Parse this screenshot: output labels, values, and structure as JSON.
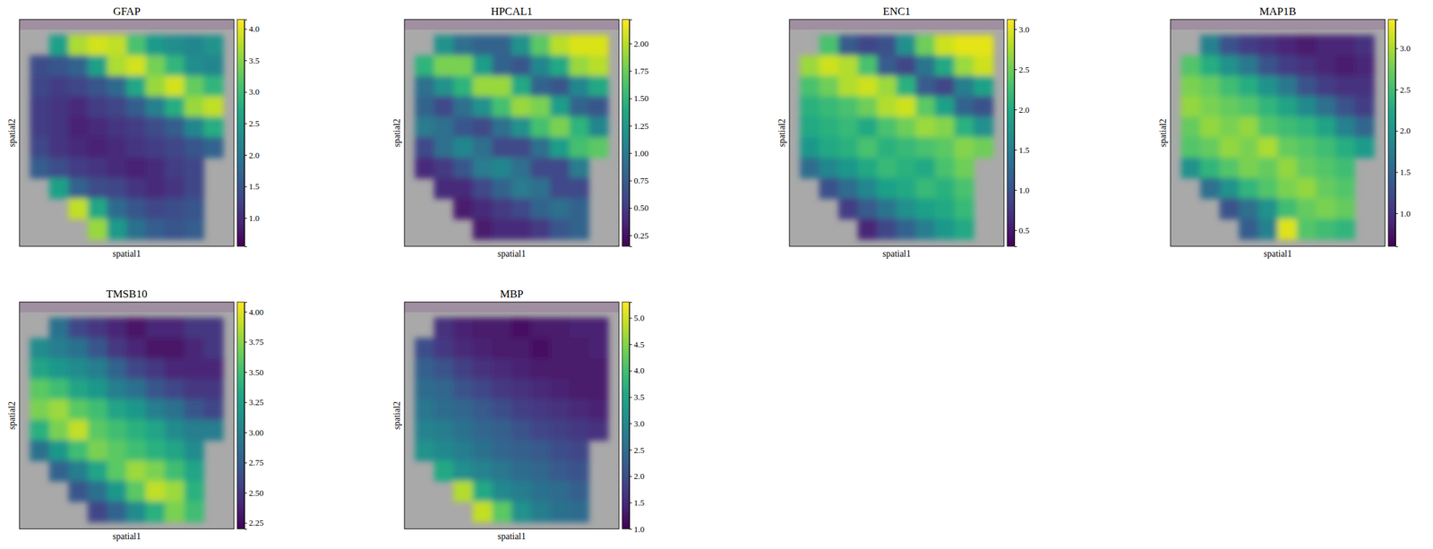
{
  "chart_data": [
    {
      "type": "heatmap",
      "title": "GFAP",
      "x_label": "spatial1",
      "y_label": "spatial2",
      "tick_labels": false,
      "cells": [
        [
          null,
          2.6,
          3.7,
          3.9,
          3.8,
          3.1,
          2.5,
          2.3,
          2.2,
          2.4
        ],
        [
          1.4,
          1.5,
          1.7,
          2.6,
          3.7,
          3.9,
          3.4,
          2.9,
          2.3,
          2.2
        ],
        [
          1.3,
          1.2,
          1.3,
          1.5,
          1.8,
          2.7,
          3.6,
          3.9,
          3.3,
          2.9
        ],
        [
          1.2,
          1.1,
          1.0,
          1.2,
          1.3,
          1.6,
          2.1,
          2.8,
          3.6,
          3.8
        ],
        [
          1.2,
          1.1,
          0.9,
          1.0,
          1.1,
          1.2,
          1.4,
          1.6,
          2.2,
          2.8
        ],
        [
          1.3,
          1.1,
          1.0,
          0.9,
          1.0,
          1.1,
          1.2,
          1.3,
          1.5,
          1.7
        ],
        [
          1.6,
          1.4,
          1.2,
          1.1,
          1.0,
          0.9,
          1.0,
          1.2,
          1.3,
          null
        ],
        [
          null,
          2.6,
          1.7,
          1.4,
          1.3,
          1.1,
          1.0,
          1.1,
          1.3,
          null
        ],
        [
          null,
          null,
          3.8,
          2.7,
          1.8,
          1.5,
          1.3,
          1.4,
          1.5,
          null
        ],
        [
          null,
          null,
          null,
          3.6,
          2.5,
          1.9,
          1.6,
          1.5,
          1.6,
          null
        ]
      ],
      "colorbar": {
        "lim": [
          0.55,
          4.15
        ],
        "ticks": [
          {
            "value": 1,
            "label": "1.0"
          },
          1.5,
          {
            "value": 2,
            "label": "2.0"
          },
          2.5,
          {
            "value": 3,
            "label": "3.0"
          },
          3.5,
          {
            "value": 4,
            "label": "4.0"
          }
        ]
      }
    },
    {
      "type": "heatmap",
      "title": "HPCAL1",
      "x_label": "spatial1",
      "y_label": "spatial2",
      "tick_labels": false,
      "cells": [
        [
          null,
          1.2,
          0.9,
          0.8,
          0.8,
          1.2,
          1.7,
          2.0,
          2.1,
          2.1
        ],
        [
          1.5,
          1.8,
          1.8,
          1.3,
          0.8,
          0.7,
          1.1,
          1.4,
          1.9,
          2.0
        ],
        [
          0.9,
          1.2,
          1.5,
          1.9,
          1.9,
          1.4,
          0.8,
          0.7,
          1.1,
          1.4
        ],
        [
          0.8,
          0.6,
          0.9,
          1.2,
          1.6,
          1.9,
          1.8,
          1.3,
          0.8,
          0.7
        ],
        [
          1.0,
          0.9,
          0.7,
          0.6,
          0.9,
          1.2,
          1.6,
          1.8,
          1.5,
          1.1
        ],
        [
          0.6,
          0.9,
          1.1,
          0.9,
          0.6,
          0.6,
          0.9,
          1.3,
          1.6,
          1.7
        ],
        [
          0.4,
          0.5,
          0.7,
          1.0,
          1.1,
          0.9,
          0.6,
          0.6,
          1.0,
          null
        ],
        [
          null,
          0.4,
          0.4,
          0.6,
          0.8,
          1.0,
          0.9,
          0.6,
          0.6,
          null
        ],
        [
          null,
          null,
          0.3,
          0.4,
          0.5,
          0.6,
          0.8,
          0.9,
          0.8,
          null
        ],
        [
          null,
          null,
          null,
          0.3,
          0.4,
          0.4,
          0.5,
          0.7,
          0.8,
          null
        ]
      ],
      "colorbar": {
        "lim": [
          0.15,
          2.22
        ],
        "ticks": [
          0.25,
          {
            "value": 0.5,
            "label": "0.50"
          },
          0.75,
          {
            "value": 1,
            "label": "1.00"
          },
          1.25,
          {
            "value": 1.5,
            "label": "1.50"
          },
          1.75,
          {
            "value": 2,
            "label": "2.00"
          }
        ]
      }
    },
    {
      "type": "heatmap",
      "title": "ENC1",
      "x_label": "spatial1",
      "y_label": "spatial2",
      "tick_labels": false,
      "cells": [
        [
          null,
          2.3,
          1.1,
          0.9,
          1.0,
          1.7,
          2.5,
          2.9,
          3.0,
          3.0
        ],
        [
          2.7,
          2.9,
          2.8,
          2.3,
          1.1,
          0.9,
          1.4,
          2.0,
          2.7,
          2.9
        ],
        [
          2.3,
          2.5,
          2.8,
          2.9,
          2.7,
          2.1,
          1.1,
          0.9,
          1.5,
          1.9
        ],
        [
          2.1,
          2.2,
          2.3,
          2.5,
          2.8,
          2.9,
          2.4,
          1.9,
          1.2,
          1.0
        ],
        [
          2.0,
          2.1,
          2.2,
          2.0,
          2.3,
          2.5,
          2.7,
          2.6,
          2.1,
          1.7
        ],
        [
          1.8,
          2.0,
          2.1,
          2.3,
          2.1,
          2.2,
          2.3,
          2.4,
          2.6,
          2.5
        ],
        [
          1.3,
          1.6,
          1.8,
          2.0,
          2.2,
          2.1,
          2.0,
          2.3,
          2.5,
          null
        ],
        [
          null,
          1.0,
          1.3,
          1.6,
          1.9,
          2.0,
          2.2,
          2.1,
          2.3,
          null
        ],
        [
          null,
          null,
          0.8,
          1.1,
          1.4,
          1.7,
          1.9,
          2.0,
          2.2,
          null
        ],
        [
          null,
          null,
          null,
          0.6,
          0.9,
          1.2,
          1.5,
          1.8,
          2.0,
          null
        ]
      ],
      "colorbar": {
        "lim": [
          0.3,
          3.12
        ],
        "ticks": [
          0.5,
          {
            "value": 1,
            "label": "1.0"
          },
          1.5,
          {
            "value": 2,
            "label": "2.0"
          },
          2.5,
          {
            "value": 3,
            "label": "3.0"
          }
        ]
      }
    },
    {
      "type": "heatmap",
      "title": "MAP1B",
      "x_label": "spatial1",
      "y_label": "spatial2",
      "tick_labels": false,
      "cells": [
        [
          null,
          1.8,
          1.3,
          1.1,
          1.0,
          0.9,
          0.8,
          0.9,
          0.9,
          1.0
        ],
        [
          2.6,
          2.3,
          2.0,
          1.7,
          1.3,
          1.1,
          1.0,
          0.9,
          0.8,
          0.9
        ],
        [
          2.8,
          2.7,
          2.5,
          2.3,
          2.0,
          1.7,
          1.3,
          1.1,
          1.0,
          1.0
        ],
        [
          2.9,
          2.8,
          2.7,
          2.6,
          2.4,
          2.2,
          1.9,
          1.6,
          1.3,
          1.1
        ],
        [
          2.7,
          2.9,
          2.8,
          2.9,
          2.6,
          2.5,
          2.4,
          2.2,
          1.8,
          1.5
        ],
        [
          2.6,
          2.7,
          2.9,
          2.8,
          3.0,
          2.7,
          2.6,
          2.5,
          2.3,
          2.1
        ],
        [
          2.0,
          2.4,
          2.6,
          2.8,
          2.7,
          2.9,
          2.7,
          2.6,
          2.5,
          null
        ],
        [
          null,
          1.6,
          2.0,
          2.4,
          2.6,
          2.8,
          2.9,
          2.7,
          2.6,
          null
        ],
        [
          null,
          null,
          1.3,
          1.6,
          2.0,
          2.5,
          2.7,
          2.8,
          2.7,
          null
        ],
        [
          null,
          null,
          null,
          1.4,
          1.8,
          3.2,
          2.6,
          2.5,
          2.4,
          null
        ]
      ],
      "colorbar": {
        "lim": [
          0.6,
          3.35
        ],
        "ticks": [
          {
            "value": 1,
            "label": "1.0"
          },
          1.5,
          {
            "value": 2,
            "label": "2.0"
          },
          2.5,
          {
            "value": 3,
            "label": "3.0"
          }
        ]
      }
    },
    {
      "type": "heatmap",
      "title": "TMSB10",
      "x_label": "spatial1",
      "y_label": "spatial2",
      "tick_labels": false,
      "cells": [
        [
          null,
          2.9,
          2.6,
          2.5,
          2.4,
          2.3,
          2.4,
          2.4,
          2.5,
          2.5
        ],
        [
          3.1,
          3.0,
          2.9,
          2.7,
          2.5,
          2.4,
          2.3,
          2.3,
          2.4,
          2.5
        ],
        [
          3.3,
          3.2,
          3.1,
          3.0,
          2.8,
          2.6,
          2.5,
          2.4,
          2.4,
          2.4
        ],
        [
          3.6,
          3.5,
          3.3,
          3.2,
          3.0,
          2.9,
          2.7,
          2.6,
          2.5,
          2.5
        ],
        [
          3.7,
          3.8,
          3.6,
          3.5,
          3.3,
          3.2,
          3.0,
          2.9,
          2.7,
          2.6
        ],
        [
          3.4,
          3.7,
          3.9,
          3.6,
          3.5,
          3.4,
          3.3,
          3.1,
          3.0,
          3.0
        ],
        [
          2.9,
          3.2,
          3.5,
          3.7,
          3.6,
          3.5,
          3.4,
          3.3,
          3.1,
          null
        ],
        [
          null,
          2.8,
          3.0,
          3.3,
          3.6,
          3.8,
          3.7,
          3.5,
          3.3,
          null
        ],
        [
          null,
          null,
          2.7,
          2.9,
          3.2,
          3.6,
          3.9,
          3.8,
          3.4,
          null
        ],
        [
          null,
          null,
          null,
          2.6,
          2.8,
          3.1,
          3.4,
          3.7,
          3.5,
          null
        ]
      ],
      "colorbar": {
        "lim": [
          2.2,
          4.08
        ],
        "ticks": [
          2.25,
          {
            "value": 2.5,
            "label": "2.50"
          },
          2.75,
          {
            "value": 3,
            "label": "3.00"
          },
          3.25,
          {
            "value": 3.5,
            "label": "3.50"
          },
          3.75,
          {
            "value": 4,
            "label": "4.00"
          }
        ]
      }
    },
    {
      "type": "heatmap",
      "title": "MBP",
      "x_label": "spatial1",
      "y_label": "spatial2",
      "tick_labels": false,
      "cells": [
        [
          null,
          1.6,
          1.4,
          1.3,
          1.3,
          1.2,
          1.3,
          1.3,
          1.4,
          1.4
        ],
        [
          2.0,
          1.7,
          1.5,
          1.4,
          1.3,
          1.3,
          1.2,
          1.3,
          1.3,
          1.4
        ],
        [
          2.3,
          2.1,
          1.8,
          1.6,
          1.5,
          1.4,
          1.3,
          1.3,
          1.3,
          1.3
        ],
        [
          2.5,
          2.4,
          2.1,
          1.9,
          1.7,
          1.6,
          1.5,
          1.4,
          1.3,
          1.3
        ],
        [
          2.7,
          2.5,
          2.4,
          2.2,
          2.0,
          1.8,
          1.7,
          1.6,
          1.5,
          1.4
        ],
        [
          2.9,
          2.8,
          2.6,
          2.4,
          2.3,
          2.1,
          1.9,
          1.8,
          1.7,
          1.6
        ],
        [
          3.2,
          3.0,
          2.8,
          2.6,
          2.4,
          2.3,
          2.2,
          2.0,
          1.9,
          null
        ],
        [
          null,
          3.6,
          3.1,
          2.9,
          2.7,
          2.5,
          2.4,
          2.2,
          2.1,
          null
        ],
        [
          null,
          null,
          4.8,
          3.6,
          3.0,
          2.8,
          2.6,
          2.5,
          2.3,
          null
        ],
        [
          null,
          null,
          null,
          4.9,
          4.2,
          3.2,
          2.8,
          2.6,
          2.5,
          null
        ]
      ],
      "colorbar": {
        "lim": [
          1.0,
          5.3
        ],
        "ticks": [
          {
            "value": 1,
            "label": "1.0"
          },
          1.5,
          {
            "value": 2,
            "label": "2.0"
          },
          2.5,
          {
            "value": 3,
            "label": "3.0"
          },
          3.5,
          {
            "value": 4,
            "label": "4.0"
          },
          4.5,
          {
            "value": 5,
            "label": "5.0"
          }
        ]
      }
    }
  ]
}
